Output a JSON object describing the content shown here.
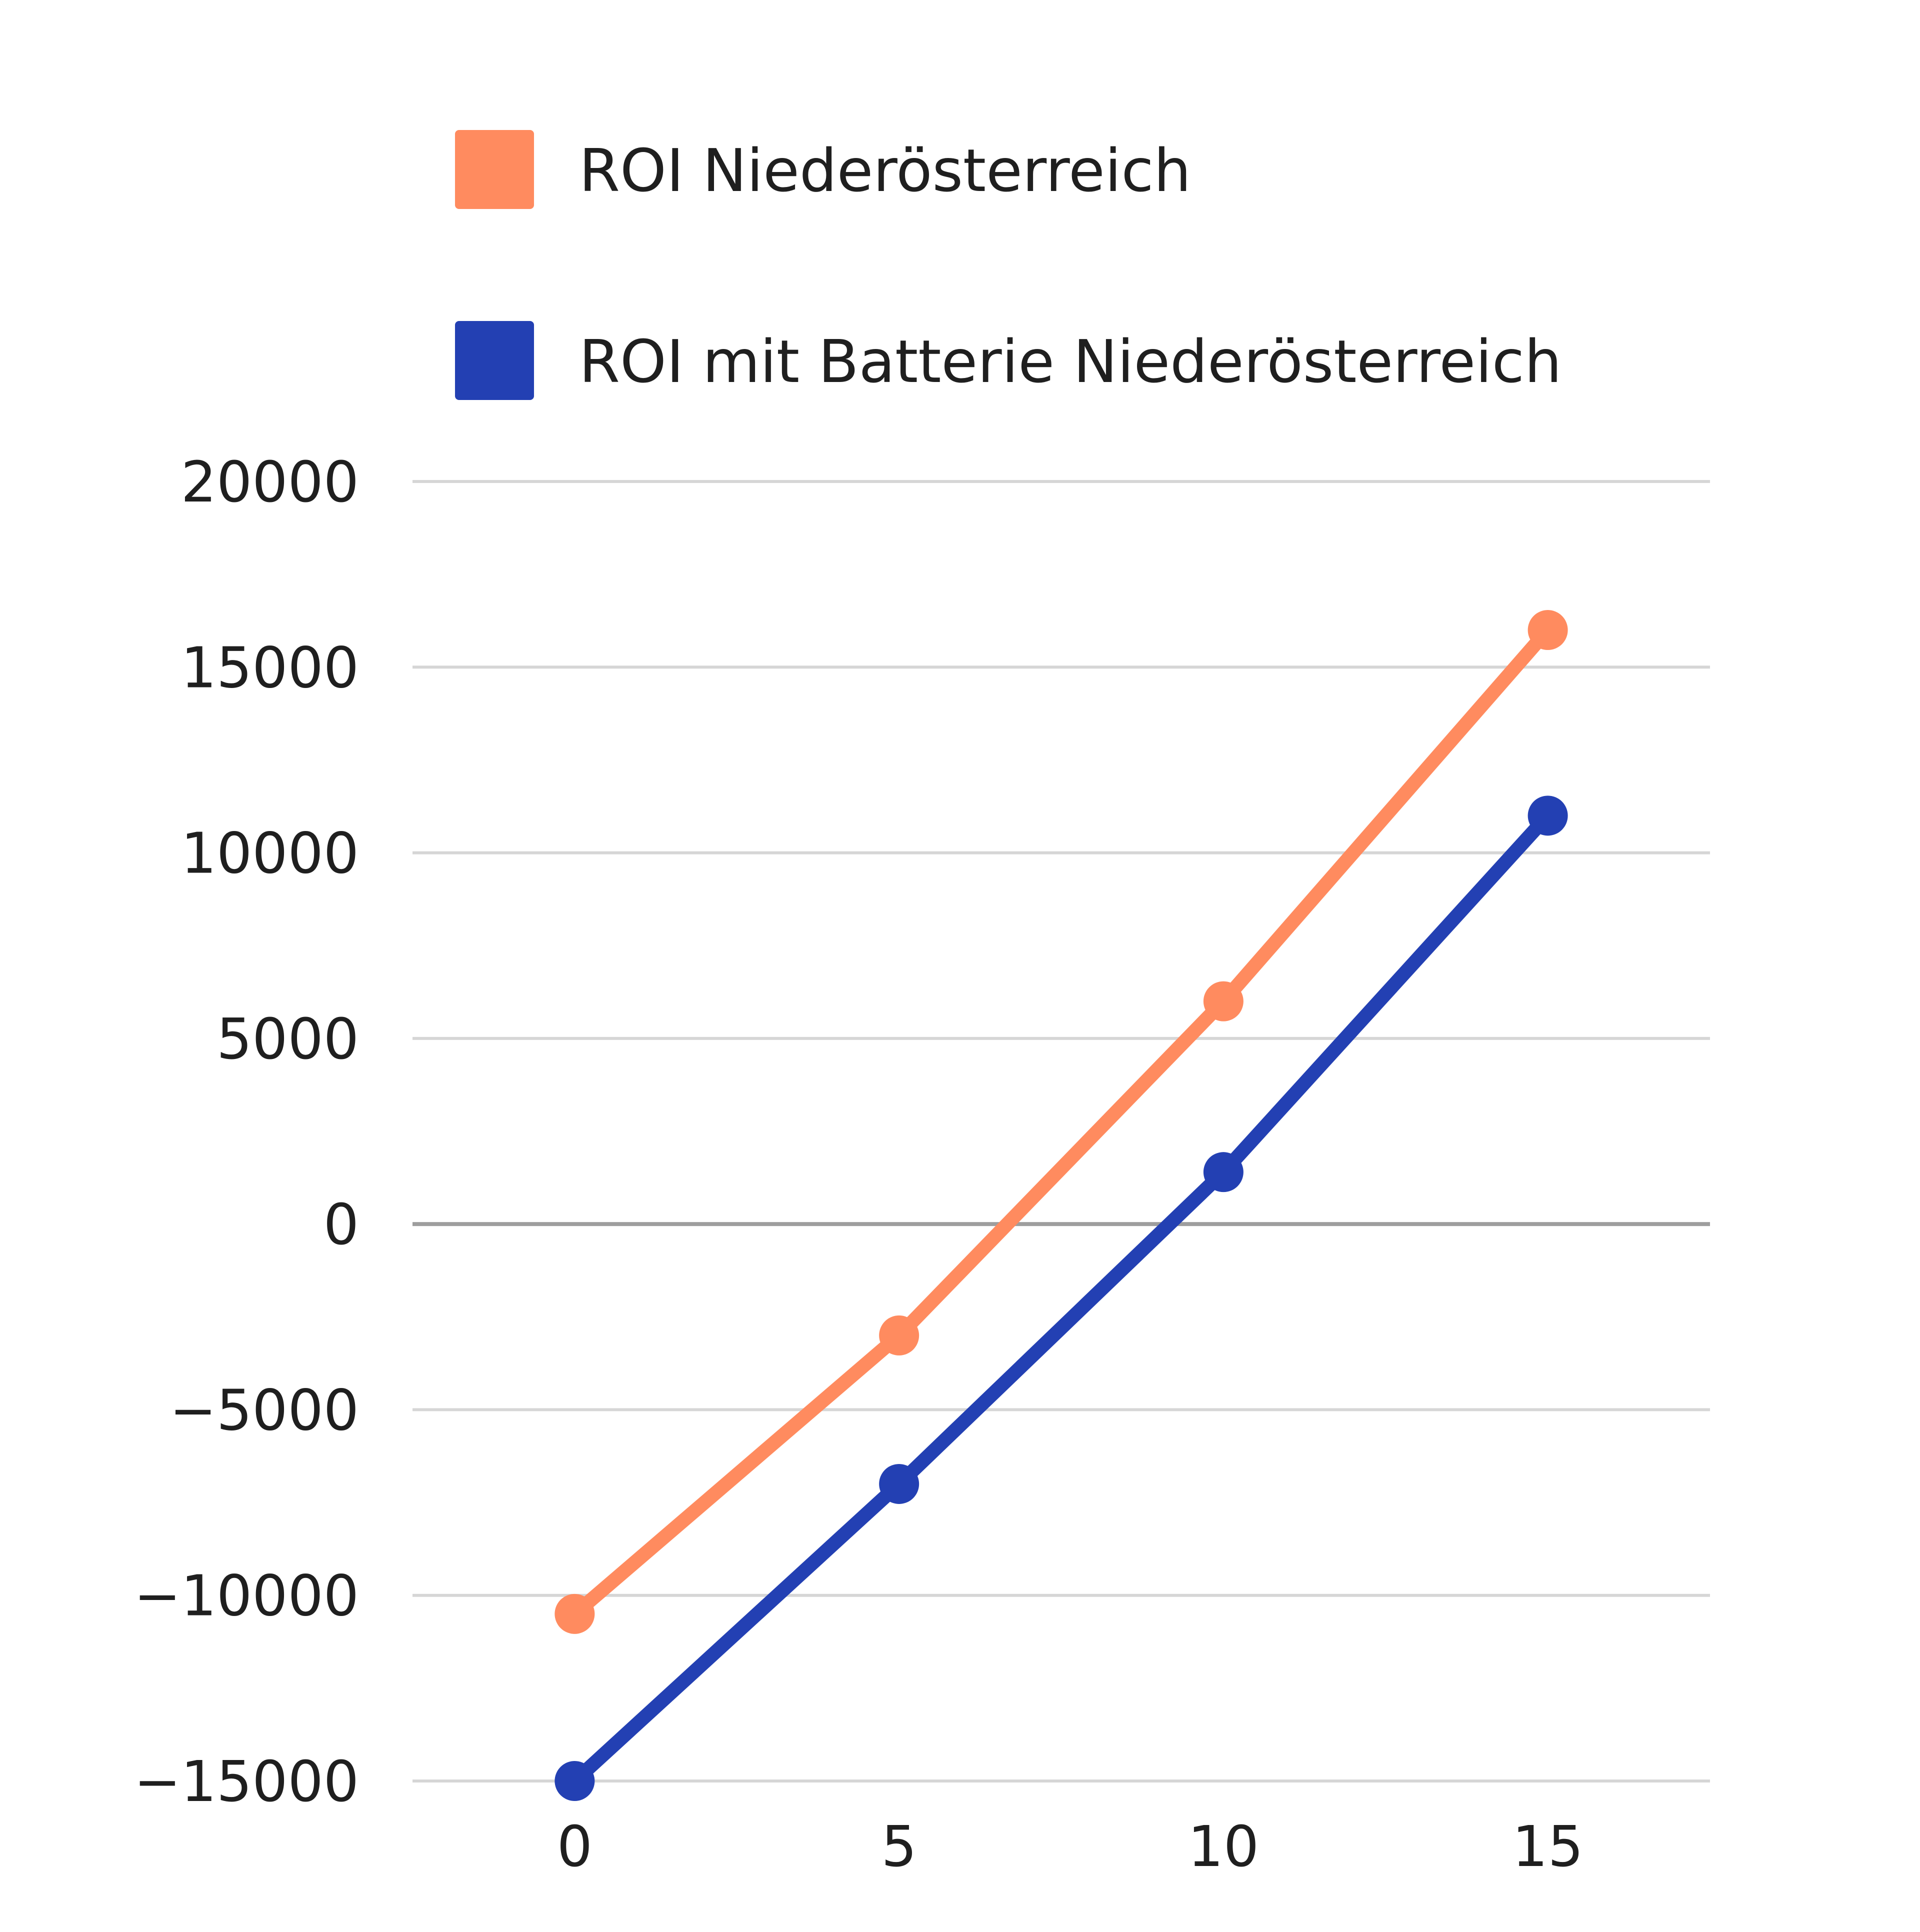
{
  "chart_data": {
    "type": "line",
    "x": [
      0,
      5,
      10,
      15
    ],
    "series": [
      {
        "name": "ROI Niederösterreich",
        "color": "#ff8b5f",
        "values": [
          -10500,
          -3000,
          6000,
          16000
        ]
      },
      {
        "name": "ROI mit Batterie Niederösterreich",
        "color": "#2340b3",
        "values": [
          -15000,
          -7000,
          1400,
          11000
        ]
      }
    ],
    "x_ticks": [
      "0",
      "5",
      "10",
      "15"
    ],
    "y_ticks": [
      "20000",
      "15000",
      "10000",
      "5000",
      "0",
      "-5000",
      "-10000",
      "-15000"
    ],
    "ylim": [
      -15000,
      20000
    ],
    "xlim": [
      -2.5,
      17.5
    ],
    "grid": true,
    "legend_position": "top"
  },
  "colors": {
    "grid": "#d6d6d6",
    "zero_line": "#9e9e9e",
    "text": "#1f1f1f"
  }
}
